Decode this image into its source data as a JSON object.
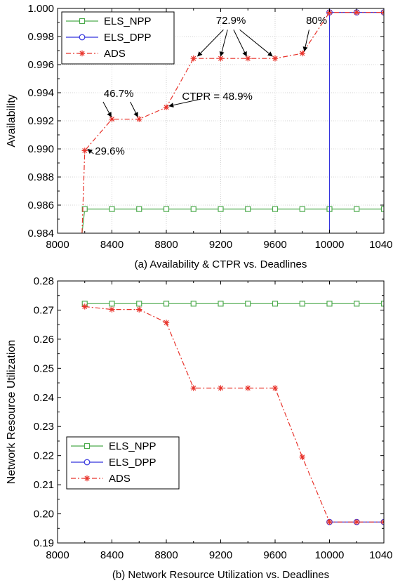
{
  "chart_data": [
    {
      "type": "line",
      "caption": "(a) Availability & CTPR vs. Deadlines",
      "xlabel": "",
      "ylabel": "Availability",
      "xlim": [
        8000,
        10400
      ],
      "ylim": [
        0.984,
        1.0
      ],
      "xticks": [
        8000,
        8400,
        8800,
        9200,
        9600,
        10000,
        10400
      ],
      "xtick_labels": [
        "8000",
        "8400",
        "8800",
        "9200",
        "9600",
        "10000",
        "10400"
      ],
      "yticks": [
        0.984,
        0.986,
        0.988,
        0.99,
        0.992,
        0.994,
        0.996,
        0.998,
        1.0
      ],
      "ytick_labels": [
        "0.984",
        "0.986",
        "0.988",
        "0.990",
        "0.992",
        "0.994",
        "0.996",
        "0.998",
        "1.000"
      ],
      "grid": true,
      "legend_position": "top-left",
      "series": [
        {
          "name": "ELS_NPP",
          "color": "#4caa4c",
          "marker": "square",
          "dash": "solid",
          "x": [
            8180,
            8200,
            8400,
            8600,
            8800,
            9000,
            9200,
            9400,
            9600,
            9800,
            10000,
            10200,
            10400
          ],
          "y": [
            0.984,
            0.98572,
            0.98572,
            0.98572,
            0.98572,
            0.98572,
            0.98572,
            0.98572,
            0.98572,
            0.98572,
            0.98572,
            0.98572,
            0.98572
          ],
          "marker_from": 1
        },
        {
          "name": "ELS_DPP",
          "color": "#3333dd",
          "marker": "circle",
          "dash": "solid",
          "x": [
            10000,
            10000,
            10200,
            10400
          ],
          "y": [
            0.984,
            0.99972,
            0.99972,
            0.99972
          ],
          "marker_from": 1
        },
        {
          "name": "ADS",
          "color": "#e8342c",
          "marker": "asterisk",
          "dash": "dashdot",
          "x": [
            8180,
            8200,
            8400,
            8600,
            8800,
            9000,
            9200,
            9400,
            9600,
            9800,
            10000,
            10200,
            10400
          ],
          "y": [
            0.984,
            0.98988,
            0.99212,
            0.99212,
            0.99296,
            0.99644,
            0.99644,
            0.99644,
            0.99644,
            0.9968,
            0.99972,
            0.99972,
            0.99972
          ],
          "marker_from": 1
        }
      ],
      "annotations": [
        {
          "text": "29.6%",
          "tx": 8275,
          "ty": 0.98985,
          "anchor": "start",
          "arrows": [
            [
              8265,
              0.98965,
              8222,
              0.98998
            ]
          ]
        },
        {
          "text": "46.7%",
          "tx": 8450,
          "ty": 0.99395,
          "anchor": "middle",
          "arrows": [
            [
              8335,
              0.99335,
              8395,
              0.99228
            ],
            [
              8535,
              0.99335,
              8590,
              0.99228
            ]
          ]
        },
        {
          "text": "CTPR = 48.9%",
          "tx": 9175,
          "ty": 0.99375,
          "anchor": "middle",
          "arrows": [
            [
              9055,
              0.99355,
              8820,
              0.99305
            ]
          ]
        },
        {
          "text": "72.9%",
          "tx": 9275,
          "ty": 0.99915,
          "anchor": "middle",
          "arrows": [
            [
              9220,
              0.99848,
              9030,
              0.9966
            ],
            [
              9250,
              0.99848,
              9200,
              0.9966
            ],
            [
              9295,
              0.99848,
              9390,
              0.9966
            ],
            [
              9340,
              0.99848,
              9580,
              0.9966
            ]
          ]
        },
        {
          "text": "80%",
          "tx": 9905,
          "ty": 0.99915,
          "anchor": "middle",
          "arrows": [
            [
              9850,
              0.99848,
              9815,
              0.99695
            ]
          ]
        }
      ]
    },
    {
      "type": "line",
      "caption": "(b) Network Resource Utilization vs. Deadlines",
      "xlabel": "",
      "ylabel": "Network Resource Utilization",
      "xlim": [
        8000,
        10400
      ],
      "ylim": [
        0.19,
        0.28
      ],
      "xticks": [
        8000,
        8400,
        8800,
        9200,
        9600,
        10000,
        10400
      ],
      "xtick_labels": [
        "8000",
        "8400",
        "8800",
        "9200",
        "9600",
        "10000",
        "10400"
      ],
      "yticks": [
        0.19,
        0.2,
        0.21,
        0.22,
        0.23,
        0.24,
        0.25,
        0.26,
        0.27,
        0.28
      ],
      "ytick_labels": [
        "0.19",
        "0.20",
        "0.21",
        "0.22",
        "0.23",
        "0.24",
        "0.25",
        "0.26",
        "0.27",
        "0.28"
      ],
      "grid": false,
      "legend_position": "center-left",
      "series": [
        {
          "name": "ELS_NPP",
          "color": "#4caa4c",
          "marker": "square",
          "dash": "solid",
          "x": [
            8200,
            8400,
            8600,
            8800,
            9000,
            9200,
            9400,
            9600,
            9800,
            10000,
            10200,
            10400
          ],
          "y": [
            0.2722,
            0.2722,
            0.2722,
            0.2722,
            0.2722,
            0.2722,
            0.2722,
            0.2722,
            0.2722,
            0.2722,
            0.2722,
            0.2722
          ],
          "marker_from": 0
        },
        {
          "name": "ELS_DPP",
          "color": "#3333dd",
          "marker": "circle",
          "dash": "solid",
          "x": [
            10000,
            10200,
            10400
          ],
          "y": [
            0.1972,
            0.1972,
            0.1972
          ],
          "marker_from": 0
        },
        {
          "name": "ADS",
          "color": "#e8342c",
          "marker": "asterisk",
          "dash": "dashdot",
          "x": [
            8200,
            8400,
            8600,
            8800,
            9000,
            9200,
            9400,
            9600,
            9800,
            10000,
            10200,
            10400
          ],
          "y": [
            0.2712,
            0.2702,
            0.2702,
            0.2657,
            0.2432,
            0.2432,
            0.2432,
            0.2432,
            0.2195,
            0.1972,
            0.1972,
            0.1972
          ],
          "marker_from": 0
        }
      ],
      "annotations": []
    }
  ]
}
